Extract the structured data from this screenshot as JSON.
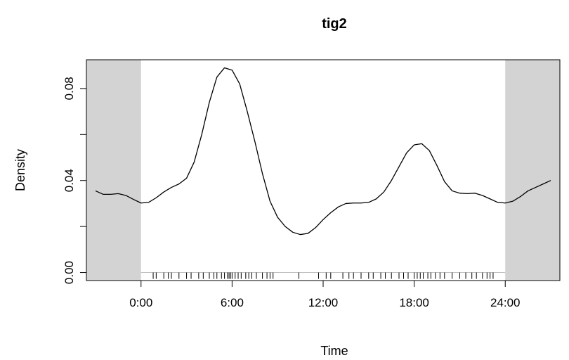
{
  "chart_data": {
    "type": "line",
    "title": "tig2",
    "xlabel": "Time",
    "ylabel": "Density",
    "xlim": [
      -3.6,
      27.6
    ],
    "ylim": [
      -0.0035,
      0.0925
    ],
    "x_ticks": [
      {
        "value": 0,
        "label": "0:00"
      },
      {
        "value": 6,
        "label": "6:00"
      },
      {
        "value": 12,
        "label": "12:00"
      },
      {
        "value": 18,
        "label": "18:00"
      },
      {
        "value": 24,
        "label": "24:00"
      }
    ],
    "y_ticks": [
      {
        "value": 0.0,
        "label": "0.00"
      },
      {
        "value": 0.02,
        "label": ""
      },
      {
        "value": 0.04,
        "label": "0.04"
      },
      {
        "value": 0.06,
        "label": ""
      },
      {
        "value": 0.08,
        "label": "0.08"
      }
    ],
    "shaded_regions": [
      {
        "from": -3.6,
        "to": 0
      },
      {
        "from": 24,
        "to": 27.6
      }
    ],
    "shade_color": "#d3d3d3",
    "baseline_color": "#bebebe",
    "grid": false,
    "series": [
      {
        "x": [
          -3,
          -2.5,
          -2,
          -1.5,
          -1,
          -0.5,
          0,
          0.5,
          1,
          1.5,
          2,
          2.5,
          3,
          3.5,
          4,
          4.5,
          5,
          5.5,
          6,
          6.5,
          7,
          7.5,
          8,
          8.5,
          9,
          9.5,
          10,
          10.5,
          11,
          11.5,
          12,
          12.5,
          13,
          13.5,
          14,
          14.5,
          15,
          15.5,
          16,
          16.5,
          17,
          17.5,
          18,
          18.5,
          19,
          19.5,
          20,
          20.5,
          21,
          21.5,
          22,
          22.5,
          23,
          23.5,
          24,
          24.5,
          25,
          25.5,
          26,
          26.5,
          27
        ],
        "values": [
          0.0355,
          0.034,
          0.034,
          0.0343,
          0.0335,
          0.0318,
          0.0302,
          0.0305,
          0.0325,
          0.035,
          0.037,
          0.0385,
          0.041,
          0.048,
          0.06,
          0.074,
          0.085,
          0.089,
          0.088,
          0.082,
          0.07,
          0.057,
          0.043,
          0.031,
          0.024,
          0.02,
          0.0175,
          0.0165,
          0.017,
          0.0195,
          0.023,
          0.026,
          0.0285,
          0.03,
          0.0302,
          0.0302,
          0.0305,
          0.032,
          0.035,
          0.04,
          0.046,
          0.052,
          0.0555,
          0.056,
          0.053,
          0.0465,
          0.0395,
          0.0355,
          0.0345,
          0.0343,
          0.0345,
          0.0335,
          0.032,
          0.0305,
          0.0302,
          0.031,
          0.033,
          0.0355,
          0.037,
          0.0385,
          0.04
        ]
      }
    ],
    "rug": [
      0.8,
      1.0,
      1.5,
      1.8,
      2.0,
      2.5,
      3.0,
      3.3,
      3.8,
      4.1,
      4.5,
      4.8,
      5.0,
      5.3,
      5.5,
      5.7,
      5.8,
      5.9,
      6.0,
      6.2,
      6.4,
      6.6,
      6.9,
      7.1,
      7.3,
      7.6,
      8.0,
      8.3,
      8.5,
      8.7,
      10.4,
      11.7,
      12.2,
      12.5,
      13.3,
      13.7,
      14.0,
      14.5,
      15.0,
      15.3,
      15.8,
      16.1,
      16.5,
      17.0,
      17.3,
      17.6,
      18.0,
      18.2,
      18.4,
      18.6,
      18.9,
      19.1,
      19.4,
      19.7,
      20.0,
      20.5,
      21.0,
      21.4,
      21.8,
      22.1,
      22.5,
      22.8,
      23.0,
      23.2
    ]
  }
}
